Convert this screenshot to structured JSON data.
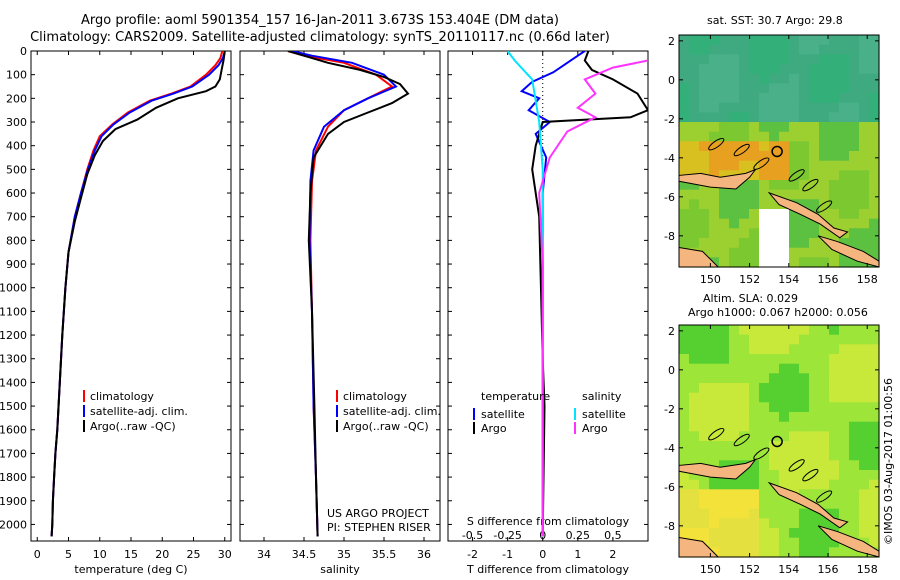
{
  "header": {
    "title_line1": "Argo profile: aoml 5901354_157 16-Jan-2011 3.673S 153.404E (DM data)",
    "title_line2": "Climatology: CARS2009. Satellite-adjusted climatology: synTS_20110117.nc (0.66d later)"
  },
  "colors": {
    "climatology": "#ff0000",
    "satellite": "#0000ff",
    "argo": "#000000",
    "salinity_satellite": "#00e5ff",
    "salinity_argo": "#ff33ff"
  },
  "chart_data": [
    {
      "type": "line",
      "name": "temperature",
      "xlabel": "temperature (deg C)",
      "xlim": [
        -1,
        31
      ],
      "xticks": [
        0,
        5,
        10,
        15,
        20,
        25,
        30
      ],
      "ylim": [
        2070,
        0
      ],
      "yticks": [
        0,
        100,
        200,
        300,
        400,
        500,
        600,
        700,
        800,
        900,
        1000,
        1100,
        1200,
        1300,
        1400,
        1500,
        1600,
        1700,
        1800,
        1900,
        2000
      ],
      "legend": [
        "climatology",
        "satellite-adj. clim.",
        "Argo(..raw -QC)"
      ],
      "series": [
        {
          "name": "climatology",
          "color": "#ff0000",
          "x": [
            29.6,
            29.3,
            28.5,
            27.0,
            24.5,
            21.5,
            18.0,
            14.5,
            12.0,
            10.0,
            9.0,
            8.0,
            7.0,
            6.0,
            5.0,
            4.5,
            4.0,
            3.6,
            3.2,
            2.9,
            2.7,
            2.5,
            2.4,
            2.3
          ],
          "y": [
            0,
            30,
            60,
            100,
            150,
            180,
            210,
            260,
            310,
            360,
            420,
            500,
            600,
            700,
            850,
            1000,
            1200,
            1400,
            1600,
            1700,
            1800,
            1900,
            2000,
            2050
          ]
        },
        {
          "name": "satellite-adj. clim.",
          "color": "#0000ff",
          "x": [
            30.0,
            29.7,
            29.0,
            27.5,
            24.8,
            21.8,
            18.3,
            14.8,
            12.2,
            10.3,
            9.2,
            8.1,
            7.0,
            6.0,
            5.0,
            4.5,
            4.0,
            3.6,
            3.2,
            2.9,
            2.7,
            2.5,
            2.4,
            2.3
          ],
          "y": [
            0,
            30,
            60,
            100,
            150,
            180,
            210,
            260,
            310,
            360,
            420,
            500,
            600,
            700,
            850,
            1000,
            1200,
            1400,
            1600,
            1700,
            1800,
            1900,
            2000,
            2050
          ]
        },
        {
          "name": "Argo(..raw -QC)",
          "color": "#000000",
          "x": [
            30.0,
            29.8,
            29.5,
            29.2,
            28.5,
            27.0,
            22.5,
            19.0,
            16.0,
            12.5,
            10.5,
            9.2,
            8.0,
            7.0,
            6.0,
            5.0,
            4.5,
            4.0,
            3.6,
            3.2,
            2.9,
            2.7,
            2.5,
            2.4,
            2.3
          ],
          "y": [
            0,
            40,
            80,
            120,
            150,
            170,
            200,
            240,
            290,
            330,
            380,
            440,
            520,
            620,
            720,
            850,
            1000,
            1200,
            1400,
            1600,
            1700,
            1800,
            1900,
            2000,
            2050
          ]
        }
      ]
    },
    {
      "type": "line",
      "name": "salinity",
      "xlabel": "salinity",
      "xlim": [
        33.7,
        36.2
      ],
      "xticks": [
        34,
        34.5,
        35,
        35.5,
        36
      ],
      "ylim": [
        2070,
        0
      ],
      "legend": [
        "climatology",
        "satellite-adj. clim.",
        "Argo(..raw -QC)"
      ],
      "annotation": [
        "US ARGO PROJECT",
        "PI: STEPHEN RISER"
      ],
      "series": [
        {
          "name": "climatology",
          "color": "#ff0000",
          "x": [
            34.3,
            34.5,
            35.0,
            35.4,
            35.6,
            35.3,
            35.0,
            34.8,
            34.65,
            34.6,
            34.58,
            34.6,
            34.62,
            34.65,
            34.67
          ],
          "y": [
            0,
            20,
            50,
            100,
            150,
            200,
            250,
            320,
            420,
            550,
            800,
            1100,
            1500,
            1800,
            2050
          ]
        },
        {
          "name": "satellite-adj. clim.",
          "color": "#0000ff",
          "x": [
            34.35,
            34.6,
            35.1,
            35.5,
            35.65,
            35.3,
            35.0,
            34.75,
            34.62,
            34.58,
            34.57,
            34.6,
            34.62,
            34.65,
            34.67
          ],
          "y": [
            0,
            20,
            50,
            100,
            150,
            200,
            250,
            320,
            420,
            550,
            800,
            1100,
            1500,
            1800,
            2050
          ]
        },
        {
          "name": "Argo(..raw -QC)",
          "color": "#000000",
          "x": [
            34.3,
            34.5,
            34.8,
            35.2,
            35.5,
            35.7,
            35.8,
            35.6,
            35.3,
            35.0,
            34.8,
            34.62,
            34.58,
            34.56,
            34.6,
            34.63,
            34.65,
            34.67
          ],
          "y": [
            0,
            20,
            50,
            80,
            110,
            140,
            180,
            220,
            260,
            300,
            350,
            450,
            600,
            800,
            1100,
            1500,
            1800,
            2050
          ]
        }
      ]
    },
    {
      "type": "line",
      "name": "difference",
      "xlabel": "T difference from climatology",
      "xlabel_top": "S difference from climatology",
      "xlim": [
        -2.7,
        3.0
      ],
      "xticks": [
        -2,
        -1,
        0,
        1,
        2
      ],
      "xticks_top": [
        -0.5,
        -0.25,
        0,
        0.25,
        0.5
      ],
      "xticks_top_pos": [
        -2,
        -1,
        0,
        1,
        2
      ],
      "ylim": [
        2070,
        0
      ],
      "legend_temperature_title": "temperature",
      "legend_salinity_title": "salinity",
      "legend_temperature": [
        "satellite",
        "Argo"
      ],
      "legend_salinity": [
        "satellite",
        "Argo"
      ],
      "series": [
        {
          "name": "temperature satellite",
          "color": "#0000ff",
          "x": [
            1.2,
            1.0,
            0.7,
            0.3,
            -0.3,
            -0.6,
            -0.1,
            -0.4,
            0.2,
            -0.2,
            0.1,
            0.0,
            0.0,
            0.0
          ],
          "y": [
            0,
            20,
            50,
            90,
            130,
            170,
            200,
            250,
            300,
            350,
            450,
            600,
            1000,
            2050
          ]
        },
        {
          "name": "temperature Argo",
          "color": "#000000",
          "x": [
            1.3,
            1.2,
            1.4,
            2.0,
            2.7,
            3.0,
            2.5,
            0.0,
            -0.2,
            -0.3,
            -0.2,
            -0.1,
            0.0,
            0.05,
            0.0
          ],
          "y": [
            0,
            40,
            80,
            120,
            180,
            250,
            280,
            300,
            400,
            500,
            600,
            700,
            1300,
            1500,
            2050
          ]
        },
        {
          "name": "salinity satellite",
          "color": "#00e5ff",
          "x": [
            -1.0,
            -0.8,
            -0.3,
            -0.1,
            0.0,
            0.0,
            0.0
          ],
          "y": [
            0,
            40,
            120,
            300,
            500,
            1000,
            2050
          ]
        },
        {
          "name": "salinity Argo",
          "color": "#ff33ff",
          "x": [
            3.0,
            2.0,
            1.2,
            1.5,
            1.0,
            1.5,
            0.7,
            0.2,
            -0.1,
            0.0,
            0.0
          ],
          "y": [
            40,
            70,
            120,
            180,
            240,
            280,
            340,
            450,
            600,
            900,
            2050
          ]
        }
      ]
    },
    {
      "type": "heatmap",
      "name": "sst-map",
      "title": "sat. SST: 30.7 Argo: 29.8",
      "xticks": [
        150,
        152,
        154,
        156,
        158
      ],
      "yticks": [
        2,
        0,
        -2,
        -4,
        -6,
        -8
      ],
      "xlim": [
        148.4,
        158.6
      ],
      "ylim": [
        -9.6,
        2.3
      ]
    },
    {
      "type": "heatmap",
      "name": "sla-map",
      "title_line1": "Altim. SLA: 0.029",
      "title_line2": "Argo h1000: 0.067 h2000: 0.056",
      "xticks": [
        150,
        152,
        154,
        156,
        158
      ],
      "yticks": [
        2,
        0,
        -2,
        -4,
        -6,
        -8
      ],
      "xlim": [
        148.4,
        158.6
      ],
      "ylim": [
        -9.6,
        2.3
      ]
    }
  ],
  "credit": "©IMOS 03-Aug-2017 01:00:56"
}
